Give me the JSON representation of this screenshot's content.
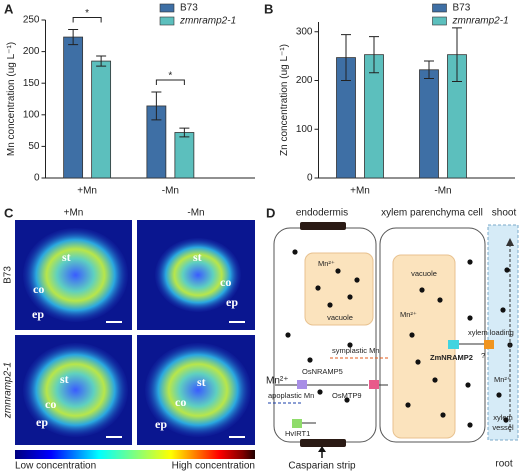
{
  "panel_labels": [
    "A",
    "B",
    "C",
    "D"
  ],
  "chart_data": [
    {
      "type": "bar",
      "y_label": "Mn concentration (ug L⁻¹)",
      "categories": [
        "+Mn",
        "-Mn"
      ],
      "series": [
        {
          "name": "B73",
          "color": "#3e6fa5",
          "values": [
            223,
            114
          ],
          "errors": [
            12,
            22
          ]
        },
        {
          "name": "zmnramp2-1",
          "color": "#5cbfbd",
          "values": [
            185,
            72
          ],
          "errors": [
            8,
            7
          ]
        }
      ],
      "ylim": [
        0,
        250
      ],
      "yticks": [
        0,
        50,
        100,
        150,
        200,
        250
      ],
      "annotations": [
        "*",
        "*"
      ],
      "legend": "top-right"
    },
    {
      "type": "bar",
      "y_label": "Zn concentration (ug L⁻¹)",
      "categories": [
        "+Mn",
        "-Mn"
      ],
      "series": [
        {
          "name": "B73",
          "color": "#3e6fa5",
          "values": [
            247,
            222
          ],
          "errors": [
            47,
            18
          ]
        },
        {
          "name": "zmnramp2-1",
          "color": "#5cbfbd",
          "values": [
            253,
            253
          ],
          "errors": [
            37,
            55
          ]
        }
      ],
      "ylim": [
        0,
        320
      ],
      "yticks": [
        0,
        100,
        200,
        300
      ],
      "annotations": [],
      "legend": "top-right"
    }
  ],
  "images": {
    "columns": [
      "+Mn",
      "-Mn"
    ],
    "rows": [
      "B73",
      "zmnramp2-1"
    ],
    "cells": [
      {
        "labels": [
          "st",
          "co",
          "ep"
        ]
      },
      {
        "labels": [
          "st",
          "co",
          "ep"
        ]
      },
      {
        "labels": [
          "st",
          "co",
          "ep"
        ]
      },
      {
        "labels": [
          "st",
          "co",
          "ep"
        ]
      }
    ],
    "colorbar": {
      "low": "Low concentration",
      "high": "High concentration"
    }
  },
  "diagram": {
    "endodermis": "endodermis",
    "parenchyma": "xylem parenchyma cell",
    "shoot": "shoot",
    "root": "root",
    "vacuole_1": "vacuole",
    "vacuole_2": "vacuole",
    "mn_vacuole_1": "Mn²⁺",
    "mn_vacuole_2": "Mn²⁺",
    "mn_outside": "Mn²⁺",
    "mn_vessel": "Mn²⁺",
    "osnramp5": "OsNRAMP5",
    "apoplastic": "apoplastic Mn",
    "symplastic": "symplastic Mn",
    "zmnramp2": "ZmNRAMP2",
    "osmtp9": "OsMTP9",
    "hvirt1": "HvIRT1",
    "xylem_loading": "xylem loading",
    "unknown": "?",
    "vessel_1": "xylem",
    "vessel_2": "vessel",
    "casparian": "Casparian strip"
  }
}
